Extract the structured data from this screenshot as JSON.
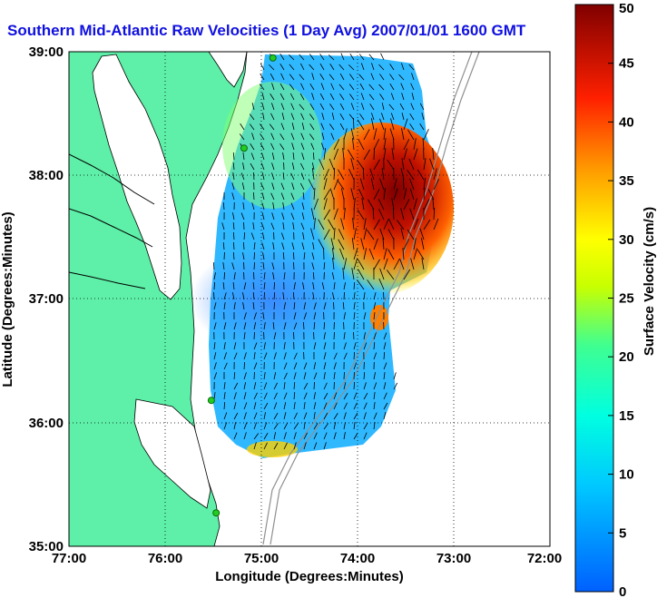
{
  "title": "Southern Mid-Atlantic Raw Velocities (1 Day Avg) 2007/01/01 1600 GMT",
  "map": {
    "xlabel": "Longitude (Degrees:Minutes)",
    "ylabel": "Latitude (Degrees:Minutes)",
    "x_ticks": [
      "77:00",
      "76:00",
      "75:00",
      "74:00",
      "73:00",
      "72:00"
    ],
    "y_ticks": [
      "39:00",
      "38:00",
      "37:00",
      "36:00",
      "35:00"
    ],
    "lon_range": [
      -77,
      -72
    ],
    "lat_range": [
      35,
      39
    ],
    "grid": "dotted",
    "land_color": "#5ef0a8",
    "water_color": "#ffffff",
    "coastline_color": "#000000",
    "bathymetry_color": "#909090",
    "station_color": "#22cc22"
  },
  "colorbar": {
    "label": "Surface Velocity (cm/s)",
    "ticks": [
      "50",
      "45",
      "40",
      "35",
      "30",
      "25",
      "20",
      "15",
      "10",
      "5",
      "0"
    ],
    "range": [
      0,
      50
    ],
    "colormap": "jet"
  },
  "stations": [
    {
      "lon": -74.88,
      "lat": 38.95
    },
    {
      "lon": -75.18,
      "lat": 38.22
    },
    {
      "lon": -75.52,
      "lat": 36.18
    },
    {
      "lon": -75.47,
      "lat": 35.27
    }
  ]
}
